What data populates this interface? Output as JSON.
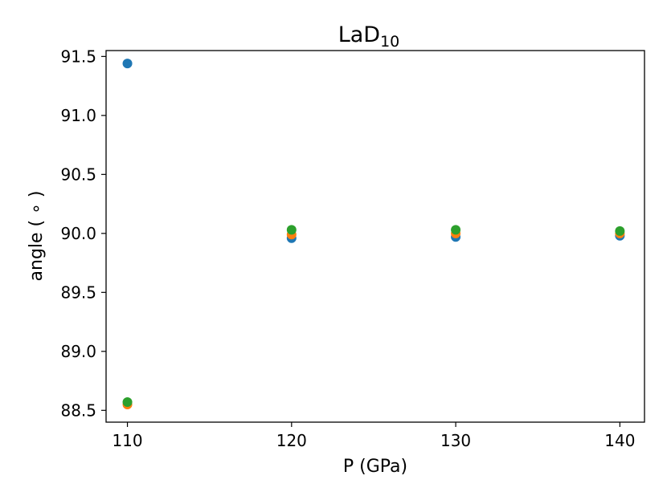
{
  "chart_data": {
    "type": "scatter",
    "title": "LaD",
    "title_subscript": "10",
    "xlabel": "P (GPa)",
    "ylabel": "angle ( ∘ )",
    "xlim": [
      108.7,
      141.5
    ],
    "ylim": [
      88.4,
      91.55
    ],
    "xticks": [
      110,
      120,
      130,
      140
    ],
    "xtick_labels": [
      "110",
      "120",
      "130",
      "140"
    ],
    "yticks": [
      88.5,
      89.0,
      89.5,
      90.0,
      90.5,
      91.0,
      91.5
    ],
    "ytick_labels": [
      "88.5",
      "89.0",
      "89.5",
      "90.0",
      "90.5",
      "91.0",
      "91.5"
    ],
    "grid": false,
    "series": [
      {
        "color": "#1f77b4",
        "x": [
          110,
          120,
          130,
          140
        ],
        "y": [
          91.44,
          89.96,
          89.97,
          89.98
        ]
      },
      {
        "color": "#ff7f0e",
        "x": [
          110,
          120,
          130,
          140
        ],
        "y": [
          88.55,
          89.99,
          90.0,
          90.0
        ]
      },
      {
        "color": "#2ca02c",
        "x": [
          110,
          120,
          130,
          140
        ],
        "y": [
          88.57,
          90.03,
          90.03,
          90.02
        ]
      }
    ]
  }
}
